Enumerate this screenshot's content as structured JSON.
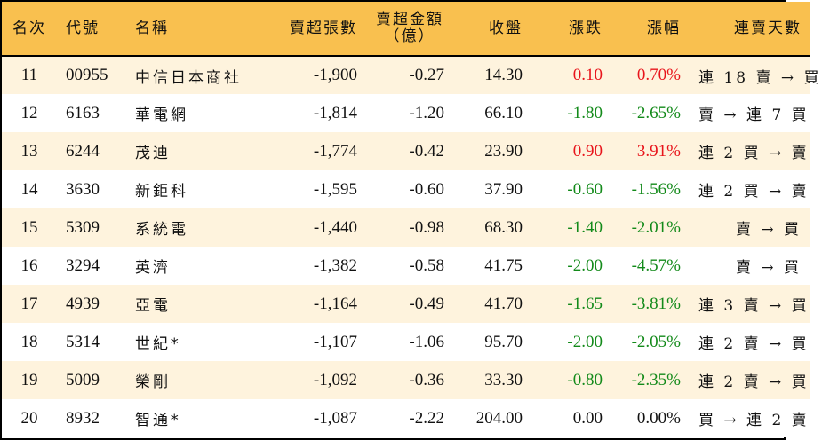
{
  "colors": {
    "header_bg": "#F9C04F",
    "row_odd_bg": "#FEF3DD",
    "row_even_bg": "#FFFFFF",
    "up": "#E8141B",
    "down": "#138A1A",
    "border": "#000000"
  },
  "header": {
    "rank": "名次",
    "code": "代號",
    "name": "名稱",
    "net_sell_volume": "賣超張數",
    "net_sell_amount_line1": "賣超金額",
    "net_sell_amount_line2": "（億）",
    "close": "收盤",
    "change": "漲跌",
    "change_pct": "漲幅",
    "streak": "連賣天數"
  },
  "rows": [
    {
      "rank": "11",
      "code": "00955",
      "name": "中信日本商社",
      "volume": "-1,900",
      "amount": "-0.27",
      "close": "14.30",
      "change": "0.10",
      "pct": "0.70%",
      "dir": "up",
      "streak": "連 18 賣 → 買"
    },
    {
      "rank": "12",
      "code": "6163",
      "name": "華電網",
      "volume": "-1,814",
      "amount": "-1.20",
      "close": "66.10",
      "change": "-1.80",
      "pct": "-2.65%",
      "dir": "down",
      "streak": "賣 → 連 7 買"
    },
    {
      "rank": "13",
      "code": "6244",
      "name": "茂迪",
      "volume": "-1,774",
      "amount": "-0.42",
      "close": "23.90",
      "change": "0.90",
      "pct": "3.91%",
      "dir": "up",
      "streak": "連 2 買 → 賣"
    },
    {
      "rank": "14",
      "code": "3630",
      "name": "新鉅科",
      "volume": "-1,595",
      "amount": "-0.60",
      "close": "37.90",
      "change": "-0.60",
      "pct": "-1.56%",
      "dir": "down",
      "streak": "連 2 買 → 賣"
    },
    {
      "rank": "15",
      "code": "5309",
      "name": "系統電",
      "volume": "-1,440",
      "amount": "-0.98",
      "close": "68.30",
      "change": "-1.40",
      "pct": "-2.01%",
      "dir": "down",
      "streak": "賣 → 買"
    },
    {
      "rank": "16",
      "code": "3294",
      "name": "英濟",
      "volume": "-1,382",
      "amount": "-0.58",
      "close": "41.75",
      "change": "-2.00",
      "pct": "-4.57%",
      "dir": "down",
      "streak": "賣 → 買"
    },
    {
      "rank": "17",
      "code": "4939",
      "name": "亞電",
      "volume": "-1,164",
      "amount": "-0.49",
      "close": "41.70",
      "change": "-1.65",
      "pct": "-3.81%",
      "dir": "down",
      "streak": "連 3 賣 → 買"
    },
    {
      "rank": "18",
      "code": "5314",
      "name": "世紀*",
      "volume": "-1,107",
      "amount": "-1.06",
      "close": "95.70",
      "change": "-2.00",
      "pct": "-2.05%",
      "dir": "down",
      "streak": "連 2 賣 → 買"
    },
    {
      "rank": "19",
      "code": "5009",
      "name": "榮剛",
      "volume": "-1,092",
      "amount": "-0.36",
      "close": "33.30",
      "change": "-0.80",
      "pct": "-2.35%",
      "dir": "down",
      "streak": "連 2 賣 → 買"
    },
    {
      "rank": "20",
      "code": "8932",
      "name": "智通*",
      "volume": "-1,087",
      "amount": "-2.22",
      "close": "204.00",
      "change": "0.00",
      "pct": "0.00%",
      "dir": "flat",
      "streak": "買 → 連 2 賣"
    }
  ]
}
